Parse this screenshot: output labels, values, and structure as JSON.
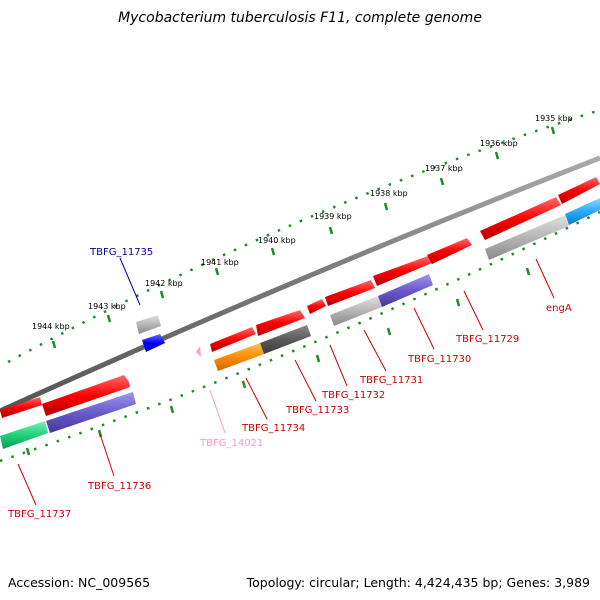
{
  "title": "Mycobacterium tuberculosis F11, complete genome",
  "footer": {
    "accession": "Accession: NC_009565",
    "topology": "Topology: circular; Length: 4,424,435 bp; Genes: 3,989"
  },
  "scale_labels": [
    "1935 kbp",
    "1936 kbp",
    "1937 kbp",
    "1938 kbp",
    "1939 kbp",
    "1940 kbp",
    "1941 kbp",
    "1942 kbp",
    "1943 kbp",
    "1944 kbp"
  ],
  "colors": {
    "red": "#ff0000",
    "gray": "#b0b0b0",
    "darkgray": "#555555",
    "purple": "#6a5acd",
    "teal": "#2ed67a",
    "cyan": "#2aaaff",
    "orange": "#ff8c00",
    "blue": "#0000ff",
    "pink": "#ff9bd2",
    "label_red": "#cc0000",
    "label_blue": "#000099",
    "label_pink": "#ff99cc",
    "tick": "#228b22",
    "backbone": "#777777"
  },
  "gene_labels": [
    {
      "text": "TBFG_11735",
      "color": "label_blue"
    },
    {
      "text": "engA",
      "color": "label_red"
    },
    {
      "text": "TBFG_11729",
      "color": "label_red"
    },
    {
      "text": "TBFG_11730",
      "color": "label_red"
    },
    {
      "text": "TBFG_11731",
      "color": "label_red"
    },
    {
      "text": "TBFG_11732",
      "color": "label_red"
    },
    {
      "text": "TBFG_11733",
      "color": "label_red"
    },
    {
      "text": "TBFG_11734",
      "color": "label_red"
    },
    {
      "text": "TBFG_14021",
      "color": "label_pink"
    },
    {
      "text": "TBFG_11736",
      "color": "label_red"
    },
    {
      "text": "TBFG_11737",
      "color": "label_red"
    }
  ]
}
